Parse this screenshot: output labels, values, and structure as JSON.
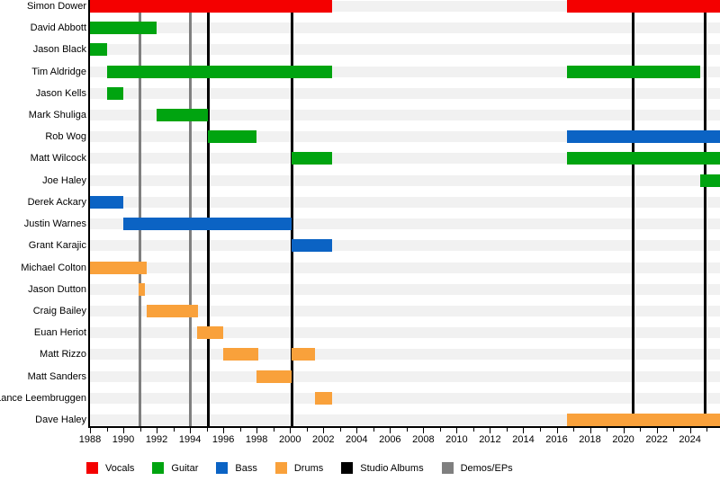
{
  "legend": {
    "items": [
      {
        "label": "Vocals",
        "color": "#f40000"
      },
      {
        "label": "Guitar",
        "color": "#00a410"
      },
      {
        "label": "Bass",
        "color": "#0b63c4"
      },
      {
        "label": "Drums",
        "color": "#f9a13b"
      },
      {
        "label": "Studio Albums",
        "color": "#000000"
      },
      {
        "label": "Demos/EPs",
        "color": "#7f7f7f"
      }
    ]
  },
  "chart_data": {
    "type": "bar",
    "subtype": "horizontal-gantt-band-member-timeline",
    "title": "",
    "xlabel": "",
    "ylabel": "",
    "grid": false,
    "legend_position": "bottom",
    "x_axis": {
      "min": 1988,
      "max": 2025.8,
      "major_tick_years": [
        1988,
        1990,
        1992,
        1994,
        1996,
        1998,
        2000,
        2002,
        2004,
        2006,
        2008,
        2010,
        2012,
        2014,
        2016,
        2018,
        2020,
        2022,
        2024
      ],
      "minor_tick_years": [
        1989,
        1991,
        1993,
        1995,
        1997,
        1999,
        2001,
        2003,
        2005,
        2007,
        2009,
        2011,
        2013,
        2015,
        2017,
        2019,
        2021,
        2023,
        2025
      ]
    },
    "colors": {
      "Vocals": "#f40000",
      "Guitar": "#00a410",
      "Bass": "#0b63c4",
      "Drums": "#f9a13b",
      "Studio Albums": "#000000",
      "Demos/EPs": "#7f7f7f"
    },
    "members": [
      {
        "name": "Simon Dower",
        "bars": [
          {
            "role": "Vocals",
            "start": 1988,
            "end": 2002.5
          },
          {
            "role": "Vocals",
            "start": 2016.6,
            "end": 2025.8
          }
        ]
      },
      {
        "name": "David Abbott",
        "bars": [
          {
            "role": "Guitar",
            "start": 1988,
            "end": 1992
          }
        ]
      },
      {
        "name": "Jason Black",
        "bars": [
          {
            "role": "Guitar",
            "start": 1988,
            "end": 1989
          }
        ]
      },
      {
        "name": "Tim Aldridge",
        "bars": [
          {
            "role": "Guitar",
            "start": 1989,
            "end": 2002.5
          },
          {
            "role": "Guitar",
            "start": 2016.6,
            "end": 2024.6
          }
        ]
      },
      {
        "name": "Jason Kells",
        "bars": [
          {
            "role": "Guitar",
            "start": 1989,
            "end": 1990
          }
        ]
      },
      {
        "name": "Mark Shuliga",
        "bars": [
          {
            "role": "Guitar",
            "start": 1992,
            "end": 1995.1
          }
        ]
      },
      {
        "name": "Rob Wog",
        "bars": [
          {
            "role": "Guitar",
            "start": 1995.1,
            "end": 1998
          },
          {
            "role": "Bass",
            "start": 2016.6,
            "end": 2025.8
          }
        ]
      },
      {
        "name": "Matt Wilcock",
        "bars": [
          {
            "role": "Guitar",
            "start": 2000.1,
            "end": 2002.5
          },
          {
            "role": "Guitar",
            "start": 2016.6,
            "end": 2025.8
          }
        ]
      },
      {
        "name": "Joe Haley",
        "bars": [
          {
            "role": "Guitar",
            "start": 2024.6,
            "end": 2025.8
          }
        ]
      },
      {
        "name": "Derek Ackary",
        "bars": [
          {
            "role": "Bass",
            "start": 1988,
            "end": 1990
          }
        ]
      },
      {
        "name": "Justin Warnes",
        "bars": [
          {
            "role": "Bass",
            "start": 1990,
            "end": 2000.1
          }
        ]
      },
      {
        "name": "Grant Karajic",
        "bars": [
          {
            "role": "Bass",
            "start": 2000.1,
            "end": 2002.5
          }
        ]
      },
      {
        "name": "Michael Colton",
        "bars": [
          {
            "role": "Drums",
            "start": 1988,
            "end": 1991.4
          }
        ]
      },
      {
        "name": "Jason Dutton",
        "bars": [
          {
            "role": "Drums",
            "start": 1990.9,
            "end": 1991.3
          }
        ]
      },
      {
        "name": "Craig Bailey",
        "bars": [
          {
            "role": "Drums",
            "start": 1991.4,
            "end": 1994.5
          }
        ]
      },
      {
        "name": "Euan Heriot",
        "bars": [
          {
            "role": "Drums",
            "start": 1994.4,
            "end": 1996
          }
        ]
      },
      {
        "name": "Matt Rizzo",
        "bars": [
          {
            "role": "Drums",
            "start": 1996,
            "end": 1998.1
          },
          {
            "role": "Drums",
            "start": 2000.1,
            "end": 2001.5
          }
        ]
      },
      {
        "name": "Matt Sanders",
        "bars": [
          {
            "role": "Drums",
            "start": 1998,
            "end": 2000.1
          }
        ]
      },
      {
        "name": "Lance Leembruggen",
        "bars": [
          {
            "role": "Drums",
            "start": 2001.5,
            "end": 2002.5
          }
        ]
      },
      {
        "name": "Dave Haley",
        "bars": [
          {
            "role": "Drums",
            "start": 2016.6,
            "end": 2025.8
          }
        ]
      }
    ],
    "events": {
      "studio_albums": [
        1995.1,
        2000.1,
        2020.6,
        2024.9
      ],
      "demos_eps": [
        1991,
        1994
      ]
    }
  }
}
